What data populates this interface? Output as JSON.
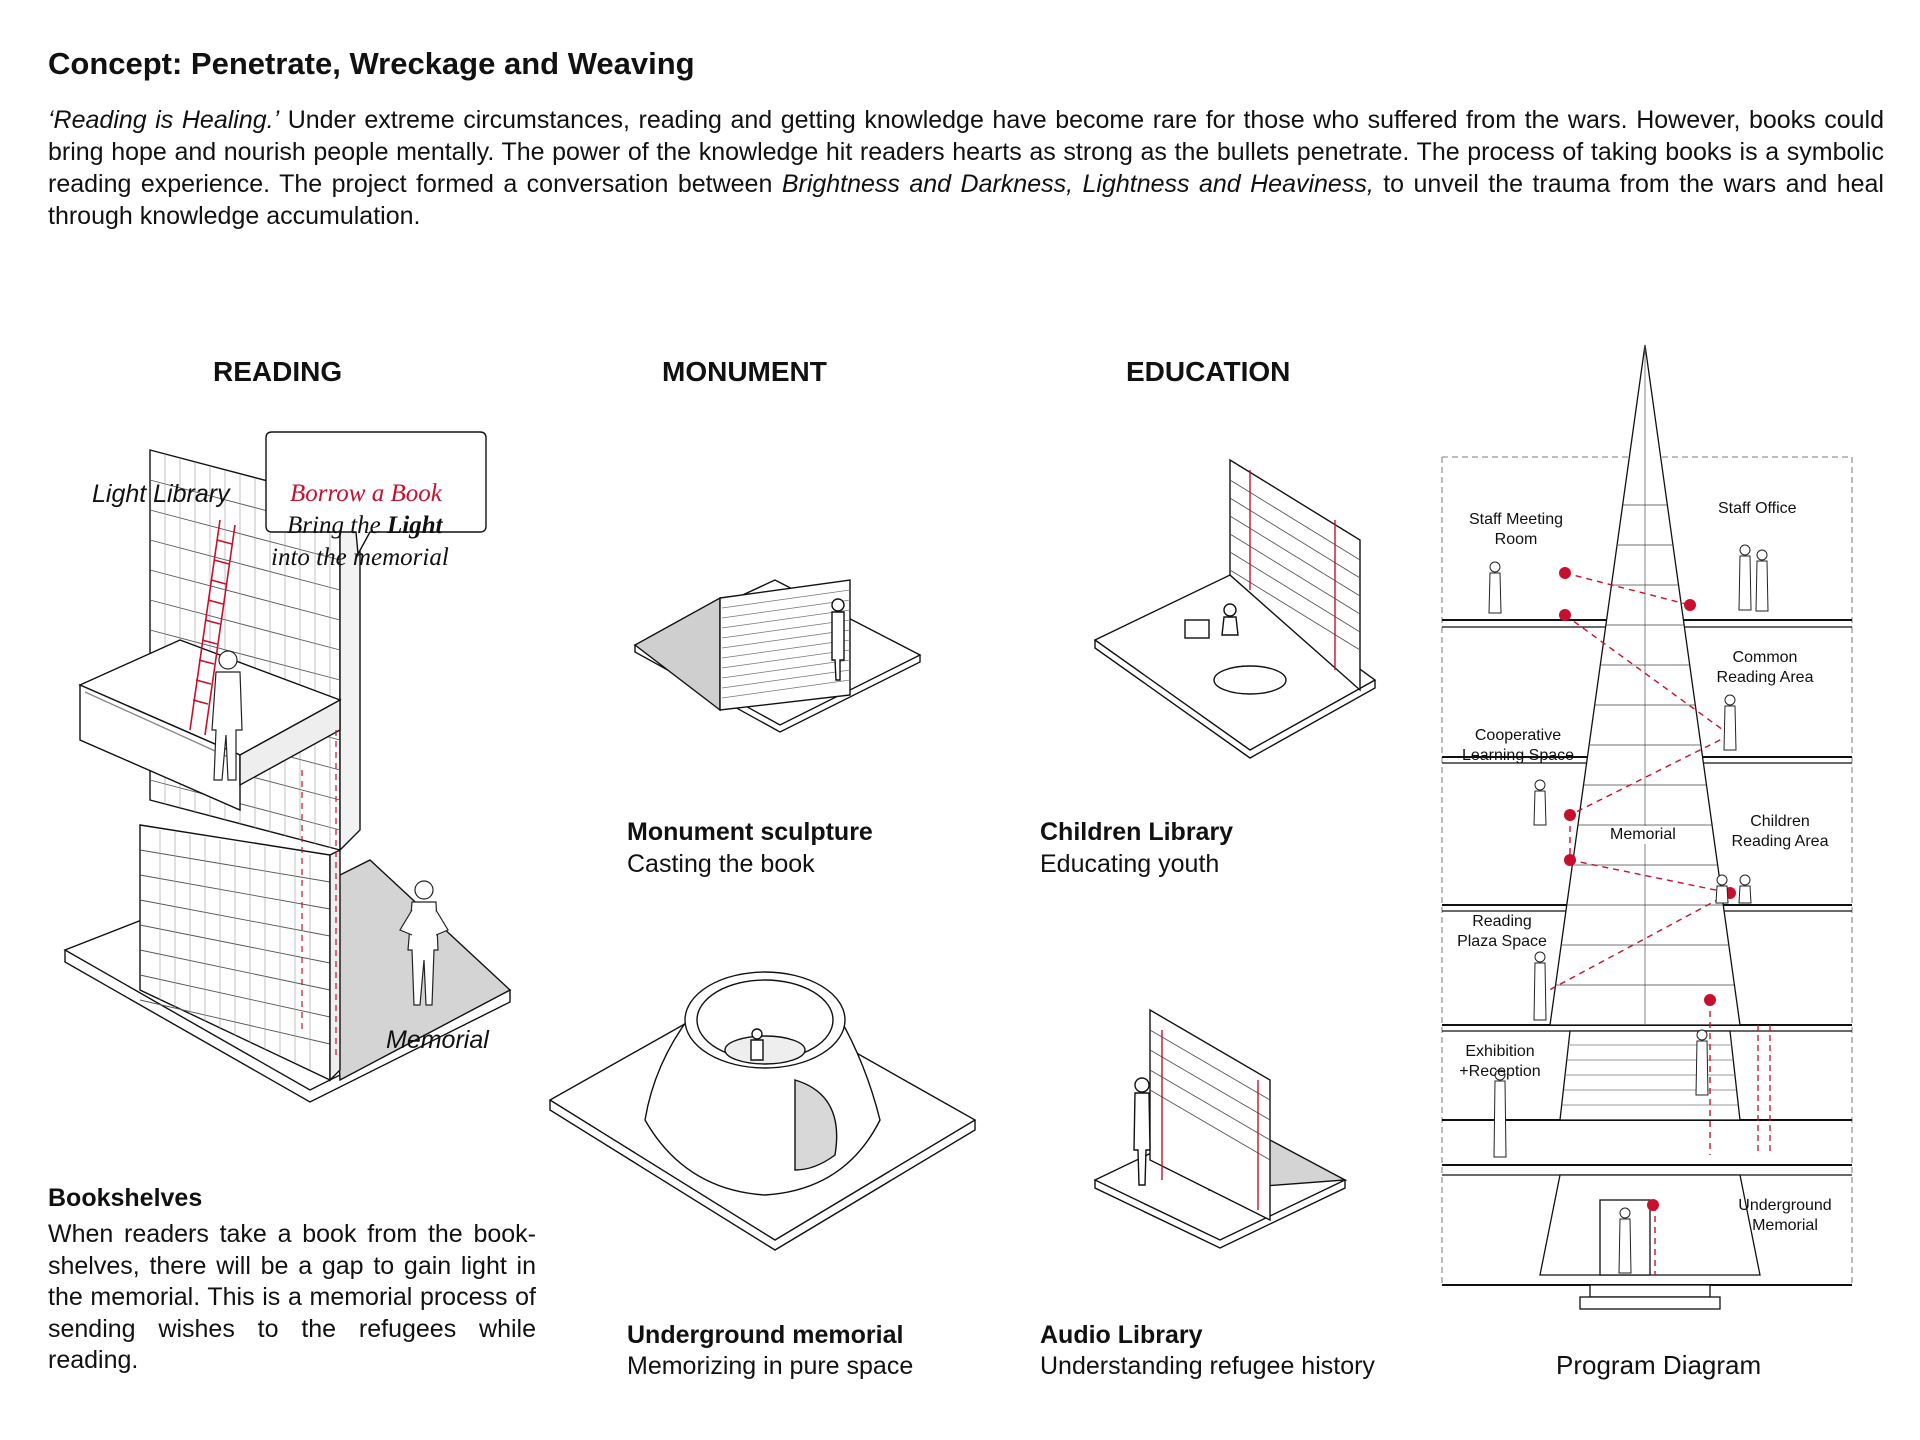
{
  "header": {
    "title": "Concept: Penetrate, Wreckage and Weaving",
    "intro_quote": "‘Reading is Healing.’",
    "intro_p1": " Under extreme circumstances, reading and getting knowledge have become rare for those who suffered from the wars. However, books could bring hope and nourish people mentally. The power of the knowledge hit readers hearts as strong as the bullets penetrate. The process of taking books is a symbolic reading experience. The project formed a conversation between ",
    "intro_emph": "Brightness and Darkness, Lightness and Heaviness,",
    "intro_p2": " to unveil the trauma from the wars and heal through knowledge accumulation."
  },
  "sections": {
    "reading": "READING",
    "monument": "MONUMENT",
    "education": "EDUCATION"
  },
  "reading": {
    "light_library": "Light Library",
    "bubble_line1": "Borrow a Book",
    "bubble_line2a": "Bring the ",
    "bubble_line2b": "Light",
    "bubble_line3": "into the memorial",
    "memorial": "Memorial",
    "caption_title": "Bookshelves",
    "caption_text": "When readers take a book from the book-shelves, there will be a gap to gain light in the memorial. This is a memorial process of sending wishes to the refugees while reading."
  },
  "monument": {
    "top_title": "Monument sculpture",
    "top_text": "Casting the book",
    "bottom_title": "Underground memorial",
    "bottom_text": "Memorizing in pure space"
  },
  "education": {
    "top_title": "Children Library",
    "top_text": "Educating youth",
    "bottom_title": "Audio Library",
    "bottom_text": "Understanding refugee history"
  },
  "program": {
    "caption": "Program Diagram",
    "staff_meeting_1": "Staff Meeting",
    "staff_meeting_2": "Room",
    "staff_office": "Staff Office",
    "common_1": "Common",
    "common_2": "Reading Area",
    "coop_1": "Cooperative",
    "coop_2": "Learning Space",
    "memorial": "Memorial",
    "children_1": "Children",
    "children_2": "Reading Area",
    "plaza_1": "Reading",
    "plaza_2": "Plaza Space",
    "exhibition_1": "Exhibition",
    "exhibition_2": "+Reception",
    "underground_1": "Underground",
    "underground_2": "Memorial"
  },
  "colors": {
    "accent_red": "#c8102e",
    "line": "#111111",
    "shade": "#d4d4d4"
  }
}
